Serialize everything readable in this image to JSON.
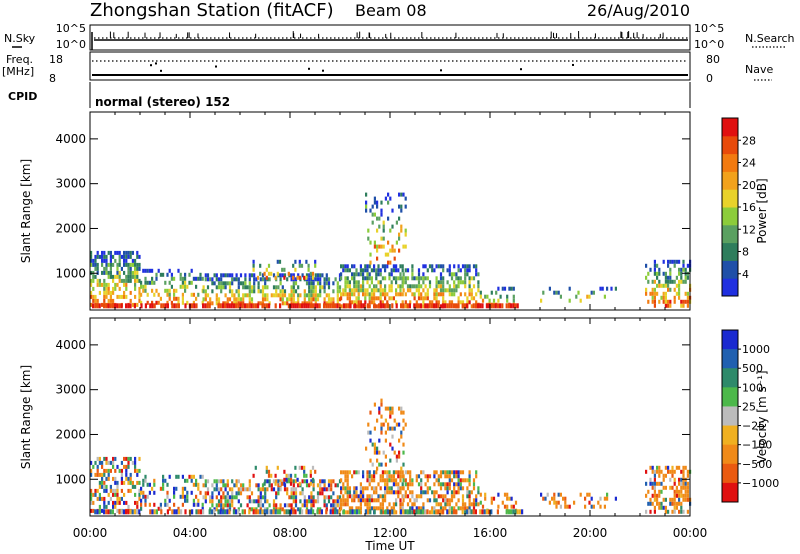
{
  "header": {
    "station": "Zhongshan Station (fitACF)",
    "beam": "Beam 08",
    "date": "26/Aug/2010"
  },
  "top_panels": {
    "sky": {
      "left_label": "N.Sky",
      "left_ticks": [
        "10^5",
        "10^0"
      ],
      "right_label": "N.Search",
      "right_ticks": [
        "10^5",
        "10^0"
      ]
    },
    "freq": {
      "left_label_1": "Freq.",
      "left_label_2": "[MHz]",
      "left_ticks": [
        "18",
        "8"
      ],
      "right_label": "Nave",
      "right_ticks": [
        "80",
        "0"
      ]
    },
    "cpid": {
      "left_label": "CPID",
      "mode_text": "normal (stereo) 152"
    }
  },
  "panel_labels": {
    "y_label": "Slant Range [km]",
    "x_label": "Time UT",
    "power_cbar_label": "Power [dB]",
    "velocity_cbar_label": "Velocity [m s⁻¹]"
  },
  "chart_data": [
    {
      "type": "heatmap",
      "name": "power",
      "xlabel": "Time UT",
      "ylabel": "Slant Range [km]",
      "xlim": [
        0,
        24
      ],
      "ylim": [
        180,
        4600
      ],
      "x_ticks": [
        "00:00",
        "04:00",
        "08:00",
        "12:00",
        "16:00",
        "20:00",
        "00:00"
      ],
      "y_ticks": [
        1000,
        2000,
        3000,
        4000
      ],
      "colorbar": {
        "label": "Power [dB]",
        "ticks": [
          4,
          8,
          12,
          16,
          20,
          24,
          28
        ],
        "range": [
          0,
          32
        ],
        "colors": [
          "#2030e0",
          "#1f4fa8",
          "#2e7d5c",
          "#5aa060",
          "#8ccc3a",
          "#e8d22a",
          "#f2a21c",
          "#f27a10",
          "#e84a0a",
          "#e01010"
        ]
      }
    },
    {
      "type": "heatmap",
      "name": "velocity",
      "xlabel": "Time UT",
      "ylabel": "Slant Range [km]",
      "xlim": [
        0,
        24
      ],
      "ylim": [
        180,
        4600
      ],
      "x_ticks": [
        "00:00",
        "04:00",
        "08:00",
        "12:00",
        "16:00",
        "20:00",
        "00:00"
      ],
      "y_ticks": [
        1000,
        2000,
        3000,
        4000
      ],
      "colorbar": {
        "label": "Velocity [m s⁻¹]",
        "ticks": [
          1000,
          500,
          100,
          25,
          -25,
          -100,
          -500,
          -1000
        ],
        "colors": [
          "#1a2ad0",
          "#2060b0",
          "#2e8a6a",
          "#4cb84a",
          "#bcbcbc",
          "#f0b020",
          "#f08a18",
          "#ea5a10",
          "#e01010"
        ]
      }
    }
  ],
  "scatter_palettes": {
    "power": [
      "#2030e0",
      "#1f4fa8",
      "#2e7d5c",
      "#5aa060",
      "#8ccc3a",
      "#e8d22a",
      "#f2a21c",
      "#f27a10",
      "#e84a0a",
      "#e01010"
    ],
    "velocity": [
      "#1a2ad0",
      "#2060b0",
      "#2e8a6a",
      "#4cb84a",
      "#bcbcbc",
      "#f0b020",
      "#f08a18",
      "#ea5a10",
      "#e01010"
    ]
  }
}
